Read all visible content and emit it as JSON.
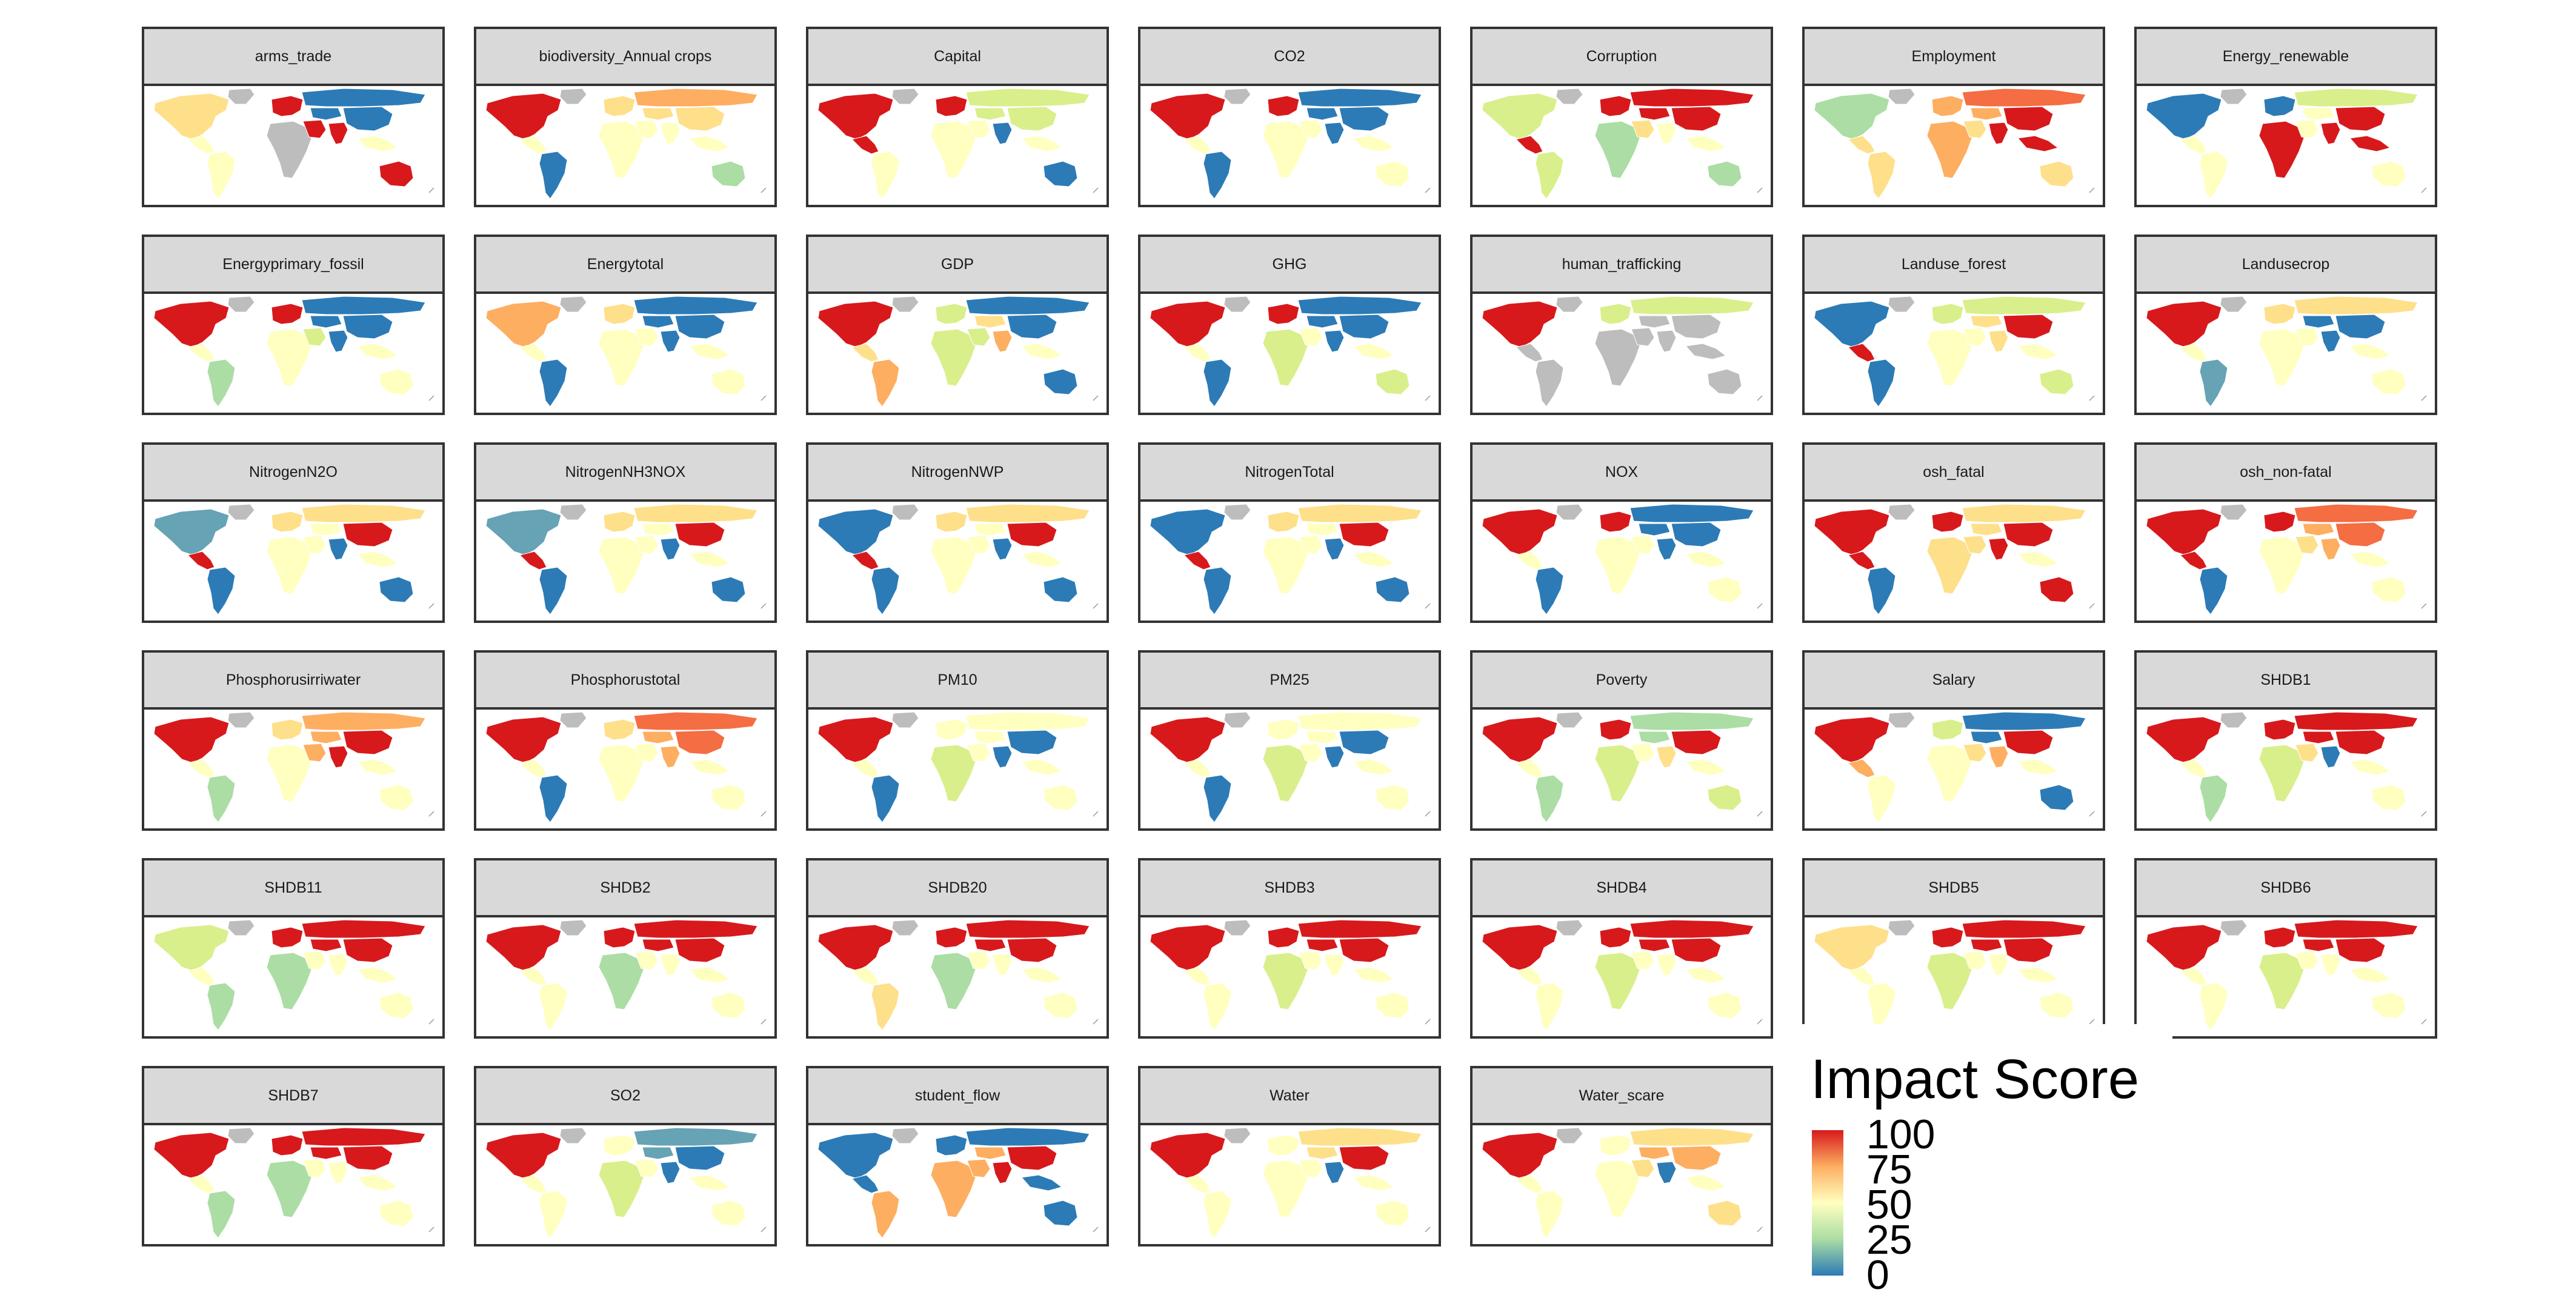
{
  "palette": {
    "red": "#d7191c",
    "orange": "#f46d43",
    "light_orange": "#fdae61",
    "yellow": "#fee08b",
    "pale_yellow": "#ffffbf",
    "light_green": "#d9ef8b",
    "green": "#abdda4",
    "teal": "#66a3b4",
    "blue": "#2c7bb6",
    "no_data": "#bdbdbd",
    "border": "#ffffff"
  },
  "legend": {
    "title": "Impact Score",
    "ticks": [
      "100",
      "75",
      "50",
      "25",
      "0"
    ],
    "color_scale": [
      "#2c7bb6",
      "#abdda4",
      "#ffffbf",
      "#fdae61",
      "#d7191c"
    ]
  },
  "panels": [
    {
      "title": "arms_trade",
      "colors": {
        "na": "#fee08b",
        "greenland": "#bdbdbd",
        "la": "#ffffbf",
        "sa": "#ffffbf",
        "eu": "#d7191c",
        "africa": "#bdbdbd",
        "mideast": "#d7191c",
        "russia": "#2c7bb6",
        "casia": "#2c7bb6",
        "india": "#d7191c",
        "china": "#2c7bb6",
        "sea": "#ffffbf",
        "aus": "#d7191c"
      }
    },
    {
      "title": "biodiversity_Annual crops",
      "colors": {
        "na": "#d7191c",
        "greenland": "#bdbdbd",
        "la": "#ffffbf",
        "sa": "#2c7bb6",
        "eu": "#fee08b",
        "africa": "#ffffbf",
        "mideast": "#ffffbf",
        "russia": "#fdae61",
        "casia": "#fee08b",
        "india": "#ffffbf",
        "china": "#fee08b",
        "sea": "#ffffbf",
        "aus": "#abdda4"
      }
    },
    {
      "title": "Capital",
      "colors": {
        "na": "#d7191c",
        "greenland": "#bdbdbd",
        "la": "#d7191c",
        "sa": "#ffffbf",
        "eu": "#d7191c",
        "africa": "#ffffbf",
        "mideast": "#ffffbf",
        "russia": "#d9ef8b",
        "casia": "#d9ef8b",
        "india": "#2c7bb6",
        "china": "#d9ef8b",
        "sea": "#ffffbf",
        "aus": "#2c7bb6"
      }
    },
    {
      "title": "CO2",
      "colors": {
        "na": "#d7191c",
        "greenland": "#bdbdbd",
        "la": "#ffffbf",
        "sa": "#2c7bb6",
        "eu": "#d7191c",
        "africa": "#ffffbf",
        "mideast": "#ffffbf",
        "russia": "#2c7bb6",
        "casia": "#2c7bb6",
        "india": "#2c7bb6",
        "china": "#2c7bb6",
        "sea": "#ffffbf",
        "aus": "#ffffbf"
      }
    },
    {
      "title": "Corruption",
      "colors": {
        "na": "#d9ef8b",
        "greenland": "#bdbdbd",
        "la": "#d7191c",
        "sa": "#d9ef8b",
        "eu": "#d7191c",
        "africa": "#abdda4",
        "mideast": "#fee08b",
        "russia": "#d7191c",
        "casia": "#d7191c",
        "india": "#ffffbf",
        "china": "#d7191c",
        "sea": "#ffffbf",
        "aus": "#abdda4"
      }
    },
    {
      "title": "Employment",
      "colors": {
        "na": "#abdda4",
        "greenland": "#bdbdbd",
        "la": "#fee08b",
        "sa": "#fee08b",
        "eu": "#fdae61",
        "africa": "#fdae61",
        "mideast": "#fee08b",
        "russia": "#f46d43",
        "casia": "#fdae61",
        "india": "#d7191c",
        "china": "#d7191c",
        "sea": "#d7191c",
        "aus": "#fee08b"
      }
    },
    {
      "title": "Energy_renewable",
      "colors": {
        "na": "#2c7bb6",
        "greenland": "#bdbdbd",
        "la": "#ffffbf",
        "sa": "#ffffbf",
        "eu": "#2c7bb6",
        "africa": "#d7191c",
        "mideast": "#ffffbf",
        "russia": "#d9ef8b",
        "casia": "#ffffbf",
        "india": "#d7191c",
        "china": "#d7191c",
        "sea": "#d7191c",
        "aus": "#ffffbf"
      }
    },
    {
      "title": "Energyprimary_fossil",
      "colors": {
        "na": "#d7191c",
        "greenland": "#bdbdbd",
        "la": "#ffffbf",
        "sa": "#abdda4",
        "eu": "#d7191c",
        "africa": "#ffffbf",
        "mideast": "#d9ef8b",
        "russia": "#2c7bb6",
        "casia": "#2c7bb6",
        "india": "#2c7bb6",
        "china": "#2c7bb6",
        "sea": "#ffffbf",
        "aus": "#ffffbf"
      }
    },
    {
      "title": "Energytotal",
      "colors": {
        "na": "#fdae61",
        "greenland": "#bdbdbd",
        "la": "#ffffbf",
        "sa": "#2c7bb6",
        "eu": "#fee08b",
        "africa": "#ffffbf",
        "mideast": "#ffffbf",
        "russia": "#2c7bb6",
        "casia": "#2c7bb6",
        "india": "#2c7bb6",
        "china": "#2c7bb6",
        "sea": "#ffffbf",
        "aus": "#ffffbf"
      }
    },
    {
      "title": "GDP",
      "colors": {
        "na": "#d7191c",
        "greenland": "#bdbdbd",
        "la": "#fee08b",
        "sa": "#fdae61",
        "eu": "#d9ef8b",
        "africa": "#d9ef8b",
        "mideast": "#d9ef8b",
        "russia": "#2c7bb6",
        "casia": "#fee08b",
        "india": "#fdae61",
        "china": "#2c7bb6",
        "sea": "#ffffbf",
        "aus": "#2c7bb6"
      }
    },
    {
      "title": "GHG",
      "colors": {
        "na": "#d7191c",
        "greenland": "#bdbdbd",
        "la": "#ffffbf",
        "sa": "#2c7bb6",
        "eu": "#d7191c",
        "africa": "#d9ef8b",
        "mideast": "#ffffbf",
        "russia": "#2c7bb6",
        "casia": "#2c7bb6",
        "india": "#2c7bb6",
        "china": "#2c7bb6",
        "sea": "#ffffbf",
        "aus": "#d9ef8b"
      }
    },
    {
      "title": "human_trafficking",
      "colors": {
        "na": "#d7191c",
        "greenland": "#bdbdbd",
        "la": "#bdbdbd",
        "sa": "#bdbdbd",
        "eu": "#d9ef8b",
        "africa": "#bdbdbd",
        "mideast": "#bdbdbd",
        "russia": "#d9ef8b",
        "casia": "#bdbdbd",
        "india": "#bdbdbd",
        "china": "#bdbdbd",
        "sea": "#bdbdbd",
        "aus": "#bdbdbd"
      }
    },
    {
      "title": "Landuse_forest",
      "colors": {
        "na": "#2c7bb6",
        "greenland": "#bdbdbd",
        "la": "#d7191c",
        "sa": "#2c7bb6",
        "eu": "#d9ef8b",
        "africa": "#ffffbf",
        "mideast": "#ffffbf",
        "russia": "#d9ef8b",
        "casia": "#fee08b",
        "india": "#fee08b",
        "china": "#d7191c",
        "sea": "#ffffbf",
        "aus": "#d9ef8b"
      }
    },
    {
      "title": "Landusecrop",
      "colors": {
        "na": "#d7191c",
        "greenland": "#bdbdbd",
        "la": "#ffffbf",
        "sa": "#66a3b4",
        "eu": "#fee08b",
        "africa": "#ffffbf",
        "mideast": "#ffffbf",
        "russia": "#fee08b",
        "casia": "#2c7bb6",
        "india": "#2c7bb6",
        "china": "#2c7bb6",
        "sea": "#ffffbf",
        "aus": "#ffffbf"
      }
    },
    {
      "title": "NitrogenN2O",
      "colors": {
        "na": "#66a3b4",
        "greenland": "#bdbdbd",
        "la": "#d7191c",
        "sa": "#2c7bb6",
        "eu": "#fee08b",
        "africa": "#ffffbf",
        "mideast": "#ffffbf",
        "russia": "#fee08b",
        "casia": "#ffffbf",
        "india": "#2c7bb6",
        "china": "#d7191c",
        "sea": "#ffffbf",
        "aus": "#2c7bb6"
      }
    },
    {
      "title": "NitrogenNH3NOX",
      "colors": {
        "na": "#66a3b4",
        "greenland": "#bdbdbd",
        "la": "#d7191c",
        "sa": "#2c7bb6",
        "eu": "#fee08b",
        "africa": "#ffffbf",
        "mideast": "#ffffbf",
        "russia": "#fee08b",
        "casia": "#ffffbf",
        "india": "#2c7bb6",
        "china": "#d7191c",
        "sea": "#ffffbf",
        "aus": "#2c7bb6"
      }
    },
    {
      "title": "NitrogenNWP",
      "colors": {
        "na": "#2c7bb6",
        "greenland": "#bdbdbd",
        "la": "#d7191c",
        "sa": "#2c7bb6",
        "eu": "#fee08b",
        "africa": "#ffffbf",
        "mideast": "#ffffbf",
        "russia": "#fee08b",
        "casia": "#ffffbf",
        "india": "#2c7bb6",
        "china": "#d7191c",
        "sea": "#ffffbf",
        "aus": "#2c7bb6"
      }
    },
    {
      "title": "NitrogenTotal",
      "colors": {
        "na": "#2c7bb6",
        "greenland": "#bdbdbd",
        "la": "#d7191c",
        "sa": "#2c7bb6",
        "eu": "#fee08b",
        "africa": "#ffffbf",
        "mideast": "#ffffbf",
        "russia": "#fee08b",
        "casia": "#ffffbf",
        "india": "#2c7bb6",
        "china": "#d7191c",
        "sea": "#ffffbf",
        "aus": "#2c7bb6"
      }
    },
    {
      "title": "NOX",
      "colors": {
        "na": "#d7191c",
        "greenland": "#bdbdbd",
        "la": "#ffffbf",
        "sa": "#2c7bb6",
        "eu": "#d7191c",
        "africa": "#ffffbf",
        "mideast": "#ffffbf",
        "russia": "#2c7bb6",
        "casia": "#2c7bb6",
        "india": "#2c7bb6",
        "china": "#2c7bb6",
        "sea": "#ffffbf",
        "aus": "#ffffbf"
      }
    },
    {
      "title": "osh_fatal",
      "colors": {
        "na": "#d7191c",
        "greenland": "#bdbdbd",
        "la": "#d7191c",
        "sa": "#2c7bb6",
        "eu": "#d7191c",
        "africa": "#fee08b",
        "mideast": "#fee08b",
        "russia": "#fee08b",
        "casia": "#fee08b",
        "india": "#d7191c",
        "china": "#d7191c",
        "sea": "#ffffbf",
        "aus": "#d7191c"
      }
    },
    {
      "title": "osh_non-fatal",
      "colors": {
        "na": "#d7191c",
        "greenland": "#bdbdbd",
        "la": "#d7191c",
        "sa": "#2c7bb6",
        "eu": "#d7191c",
        "africa": "#ffffbf",
        "mideast": "#fee08b",
        "russia": "#f46d43",
        "casia": "#fdae61",
        "india": "#fdae61",
        "china": "#f46d43",
        "sea": "#ffffbf",
        "aus": "#ffffbf"
      }
    },
    {
      "title": "Phosphorusirriwater",
      "colors": {
        "na": "#d7191c",
        "greenland": "#bdbdbd",
        "la": "#ffffbf",
        "sa": "#abdda4",
        "eu": "#fee08b",
        "africa": "#ffffbf",
        "mideast": "#fdae61",
        "russia": "#fdae61",
        "casia": "#fdae61",
        "india": "#d7191c",
        "china": "#d7191c",
        "sea": "#ffffbf",
        "aus": "#ffffbf"
      }
    },
    {
      "title": "Phosphorustotal",
      "colors": {
        "na": "#d7191c",
        "greenland": "#bdbdbd",
        "la": "#ffffbf",
        "sa": "#2c7bb6",
        "eu": "#fee08b",
        "africa": "#ffffbf",
        "mideast": "#ffffbf",
        "russia": "#f46d43",
        "casia": "#fdae61",
        "india": "#fdae61",
        "china": "#f46d43",
        "sea": "#ffffbf",
        "aus": "#ffffbf"
      }
    },
    {
      "title": "PM10",
      "colors": {
        "na": "#d7191c",
        "greenland": "#bdbdbd",
        "la": "#ffffbf",
        "sa": "#2c7bb6",
        "eu": "#ffffbf",
        "africa": "#d9ef8b",
        "mideast": "#ffffbf",
        "russia": "#ffffbf",
        "casia": "#ffffbf",
        "india": "#2c7bb6",
        "china": "#2c7bb6",
        "sea": "#ffffbf",
        "aus": "#ffffbf"
      }
    },
    {
      "title": "PM25",
      "colors": {
        "na": "#d7191c",
        "greenland": "#bdbdbd",
        "la": "#ffffbf",
        "sa": "#2c7bb6",
        "eu": "#ffffbf",
        "africa": "#d9ef8b",
        "mideast": "#ffffbf",
        "russia": "#ffffbf",
        "casia": "#ffffbf",
        "india": "#2c7bb6",
        "china": "#2c7bb6",
        "sea": "#ffffbf",
        "aus": "#ffffbf"
      }
    },
    {
      "title": "Poverty",
      "colors": {
        "na": "#d7191c",
        "greenland": "#bdbdbd",
        "la": "#ffffbf",
        "sa": "#abdda4",
        "eu": "#d7191c",
        "africa": "#d9ef8b",
        "mideast": "#ffffbf",
        "russia": "#abdda4",
        "casia": "#abdda4",
        "india": "#fee08b",
        "china": "#d7191c",
        "sea": "#ffffbf",
        "aus": "#d9ef8b"
      }
    },
    {
      "title": "Salary",
      "colors": {
        "na": "#d7191c",
        "greenland": "#bdbdbd",
        "la": "#fdae61",
        "sa": "#ffffbf",
        "eu": "#d9ef8b",
        "africa": "#ffffbf",
        "mideast": "#fee08b",
        "russia": "#2c7bb6",
        "casia": "#2c7bb6",
        "india": "#fdae61",
        "china": "#d7191c",
        "sea": "#ffffbf",
        "aus": "#2c7bb6"
      }
    },
    {
      "title": "SHDB1",
      "colors": {
        "na": "#d7191c",
        "greenland": "#bdbdbd",
        "la": "#ffffbf",
        "sa": "#abdda4",
        "eu": "#d7191c",
        "africa": "#d9ef8b",
        "mideast": "#fee08b",
        "russia": "#d7191c",
        "casia": "#d7191c",
        "india": "#2c7bb6",
        "china": "#d7191c",
        "sea": "#ffffbf",
        "aus": "#ffffbf"
      }
    },
    {
      "title": "SHDB11",
      "colors": {
        "na": "#d9ef8b",
        "greenland": "#bdbdbd",
        "la": "#ffffbf",
        "sa": "#abdda4",
        "eu": "#d7191c",
        "africa": "#abdda4",
        "mideast": "#ffffbf",
        "russia": "#d7191c",
        "casia": "#d7191c",
        "india": "#ffffbf",
        "china": "#d7191c",
        "sea": "#ffffbf",
        "aus": "#ffffbf"
      }
    },
    {
      "title": "SHDB2",
      "colors": {
        "na": "#d7191c",
        "greenland": "#bdbdbd",
        "la": "#ffffbf",
        "sa": "#ffffbf",
        "eu": "#d7191c",
        "africa": "#abdda4",
        "mideast": "#ffffbf",
        "russia": "#d7191c",
        "casia": "#d7191c",
        "india": "#ffffbf",
        "china": "#d7191c",
        "sea": "#ffffbf",
        "aus": "#ffffbf"
      }
    },
    {
      "title": "SHDB20",
      "colors": {
        "na": "#d7191c",
        "greenland": "#bdbdbd",
        "la": "#ffffbf",
        "sa": "#fee08b",
        "eu": "#d7191c",
        "africa": "#abdda4",
        "mideast": "#ffffbf",
        "russia": "#d7191c",
        "casia": "#d7191c",
        "india": "#ffffbf",
        "china": "#d7191c",
        "sea": "#ffffbf",
        "aus": "#ffffbf"
      }
    },
    {
      "title": "SHDB3",
      "colors": {
        "na": "#d7191c",
        "greenland": "#bdbdbd",
        "la": "#ffffbf",
        "sa": "#ffffbf",
        "eu": "#d7191c",
        "africa": "#d9ef8b",
        "mideast": "#ffffbf",
        "russia": "#d7191c",
        "casia": "#d7191c",
        "india": "#ffffbf",
        "china": "#d7191c",
        "sea": "#ffffbf",
        "aus": "#ffffbf"
      }
    },
    {
      "title": "SHDB4",
      "colors": {
        "na": "#d7191c",
        "greenland": "#bdbdbd",
        "la": "#ffffbf",
        "sa": "#ffffbf",
        "eu": "#d7191c",
        "africa": "#d9ef8b",
        "mideast": "#ffffbf",
        "russia": "#d7191c",
        "casia": "#d7191c",
        "india": "#ffffbf",
        "china": "#d7191c",
        "sea": "#ffffbf",
        "aus": "#ffffbf"
      }
    },
    {
      "title": "SHDB5",
      "colors": {
        "na": "#fee08b",
        "greenland": "#bdbdbd",
        "la": "#ffffbf",
        "sa": "#ffffbf",
        "eu": "#d7191c",
        "africa": "#d9ef8b",
        "mideast": "#ffffbf",
        "russia": "#d7191c",
        "casia": "#d7191c",
        "india": "#ffffbf",
        "china": "#d7191c",
        "sea": "#ffffbf",
        "aus": "#ffffbf"
      }
    },
    {
      "title": "SHDB6",
      "colors": {
        "na": "#d7191c",
        "greenland": "#bdbdbd",
        "la": "#ffffbf",
        "sa": "#ffffbf",
        "eu": "#d7191c",
        "africa": "#d9ef8b",
        "mideast": "#ffffbf",
        "russia": "#d7191c",
        "casia": "#d7191c",
        "india": "#ffffbf",
        "china": "#d7191c",
        "sea": "#ffffbf",
        "aus": "#ffffbf"
      }
    },
    {
      "title": "SHDB7",
      "colors": {
        "na": "#d7191c",
        "greenland": "#bdbdbd",
        "la": "#ffffbf",
        "sa": "#abdda4",
        "eu": "#d7191c",
        "africa": "#abdda4",
        "mideast": "#ffffbf",
        "russia": "#d7191c",
        "casia": "#d7191c",
        "india": "#ffffbf",
        "china": "#d7191c",
        "sea": "#ffffbf",
        "aus": "#ffffbf"
      }
    },
    {
      "title": "SO2",
      "colors": {
        "na": "#d7191c",
        "greenland": "#bdbdbd",
        "la": "#ffffbf",
        "sa": "#ffffbf",
        "eu": "#ffffbf",
        "africa": "#d9ef8b",
        "mideast": "#ffffbf",
        "russia": "#66a3b4",
        "casia": "#66a3b4",
        "india": "#2c7bb6",
        "china": "#2c7bb6",
        "sea": "#ffffbf",
        "aus": "#ffffbf"
      }
    },
    {
      "title": "student_flow",
      "colors": {
        "na": "#2c7bb6",
        "greenland": "#bdbdbd",
        "la": "#2c7bb6",
        "sa": "#fdae61",
        "eu": "#2c7bb6",
        "africa": "#fdae61",
        "mideast": "#fdae61",
        "russia": "#2c7bb6",
        "casia": "#fdae61",
        "india": "#d7191c",
        "china": "#d7191c",
        "sea": "#2c7bb6",
        "aus": "#2c7bb6"
      }
    },
    {
      "title": "Water",
      "colors": {
        "na": "#d7191c",
        "greenland": "#bdbdbd",
        "la": "#ffffbf",
        "sa": "#ffffbf",
        "eu": "#ffffbf",
        "africa": "#ffffbf",
        "mideast": "#ffffbf",
        "russia": "#fee08b",
        "casia": "#fee08b",
        "india": "#2c7bb6",
        "china": "#d7191c",
        "sea": "#ffffbf",
        "aus": "#ffffbf"
      }
    },
    {
      "title": "Water_scare",
      "colors": {
        "na": "#d7191c",
        "greenland": "#bdbdbd",
        "la": "#ffffbf",
        "sa": "#ffffbf",
        "eu": "#ffffbf",
        "africa": "#ffffbf",
        "mideast": "#fee08b",
        "russia": "#fee08b",
        "casia": "#fdae61",
        "india": "#2c7bb6",
        "china": "#fdae61",
        "sea": "#ffffbf",
        "aus": "#fee08b"
      }
    }
  ]
}
